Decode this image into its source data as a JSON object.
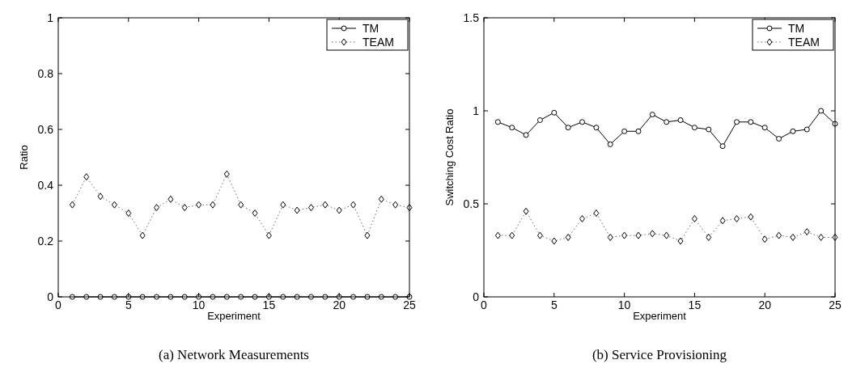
{
  "chart_data": [
    {
      "type": "line",
      "ylabel": "Ratio",
      "xlabel": "Experiment",
      "annotations": [
        "(a) Network Measurements"
      ],
      "x": [
        1,
        2,
        3,
        4,
        5,
        6,
        7,
        8,
        9,
        10,
        11,
        12,
        13,
        14,
        15,
        16,
        17,
        18,
        19,
        20,
        21,
        22,
        23,
        24,
        25
      ],
      "xlim": [
        0,
        25
      ],
      "xticks": [
        0,
        5,
        10,
        15,
        20,
        25
      ],
      "ylim": [
        0,
        1
      ],
      "yticks": [
        0,
        0.2,
        0.4,
        0.6,
        0.8,
        1
      ],
      "grid": false,
      "legend": "top right",
      "series": [
        {
          "name": "TM",
          "color": "#000000",
          "marker": "circle",
          "line_style": "solid",
          "values": [
            0,
            0,
            0,
            0,
            0,
            0,
            0,
            0,
            0,
            0,
            0,
            0,
            0,
            0,
            0,
            0,
            0,
            0,
            0,
            0,
            0,
            0,
            0,
            0,
            0
          ]
        },
        {
          "name": "TEAM",
          "color": "#000000",
          "marker": "diamond",
          "line_style": "dotted",
          "values": [
            0.33,
            0.43,
            0.36,
            0.33,
            0.3,
            0.22,
            0.32,
            0.35,
            0.32,
            0.33,
            0.33,
            0.44,
            0.33,
            0.3,
            0.22,
            0.33,
            0.31,
            0.32,
            0.33,
            0.31,
            0.33,
            0.22,
            0.35,
            0.33,
            0.32
          ]
        }
      ]
    },
    {
      "type": "line",
      "ylabel": "Switching Cost Ratio",
      "xlabel": "Experiment",
      "annotations": [
        "(b) Service Provisioning"
      ],
      "x": [
        1,
        2,
        3,
        4,
        5,
        6,
        7,
        8,
        9,
        10,
        11,
        12,
        13,
        14,
        15,
        16,
        17,
        18,
        19,
        20,
        21,
        22,
        23,
        24,
        25
      ],
      "xlim": [
        0,
        25
      ],
      "xticks": [
        0,
        5,
        10,
        15,
        20,
        25
      ],
      "ylim": [
        0,
        1.5
      ],
      "yticks": [
        0,
        0.5,
        1,
        1.5
      ],
      "grid": false,
      "legend": "top right",
      "series": [
        {
          "name": "TM",
          "color": "#000000",
          "marker": "circle",
          "line_style": "solid",
          "values": [
            0.94,
            0.91,
            0.87,
            0.95,
            0.99,
            0.91,
            0.94,
            0.91,
            0.82,
            0.89,
            0.89,
            0.98,
            0.94,
            0.95,
            0.91,
            0.9,
            0.81,
            0.94,
            0.94,
            0.91,
            0.85,
            0.89,
            0.9,
            1.0,
            0.93
          ]
        },
        {
          "name": "TEAM",
          "color": "#000000",
          "marker": "diamond",
          "line_style": "dotted",
          "values": [
            0.33,
            0.33,
            0.46,
            0.33,
            0.3,
            0.32,
            0.42,
            0.45,
            0.32,
            0.33,
            0.33,
            0.34,
            0.33,
            0.3,
            0.42,
            0.32,
            0.41,
            0.42,
            0.43,
            0.31,
            0.33,
            0.32,
            0.35,
            0.32,
            0.32
          ]
        }
      ]
    }
  ]
}
